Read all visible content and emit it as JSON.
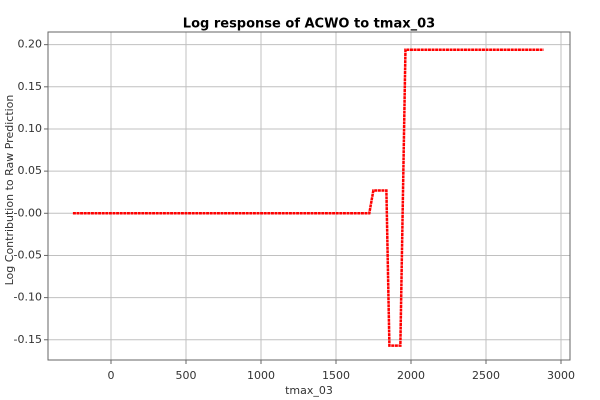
{
  "chart_data": {
    "type": "line",
    "title": "Log response of ACWO to tmax_03",
    "x_label": "tmax_03",
    "y_label": "Log Contribution to Raw Prediction",
    "series": [
      {
        "color": "#ff0000",
        "x": [
          -254,
          1722,
          1749,
          1836,
          1856,
          1929,
          1963,
          2884
        ],
        "values": [
          0.0,
          0.0,
          0.027,
          0.027,
          -0.157,
          -0.157,
          0.194,
          0.194
        ]
      }
    ],
    "xlim": [
      -420,
      3060
    ],
    "xticks": [
      0,
      500,
      1000,
      1500,
      2000,
      2500,
      3000
    ],
    "ylim": [
      -0.174,
      0.215
    ],
    "yticks": [
      {
        "value": 0.2,
        "label": "0.20"
      },
      {
        "value": 0.15,
        "label": "0.15"
      },
      {
        "value": 0.1,
        "label": "0.10"
      },
      {
        "value": 0.05,
        "label": "0.05"
      },
      {
        "value": 0,
        "label": "-0.00"
      },
      {
        "value": -0.05,
        "label": "-0.05"
      },
      {
        "value": -0.1,
        "label": "-0.10"
      },
      {
        "value": -0.15,
        "label": "-0.15"
      }
    ],
    "grid": true
  }
}
